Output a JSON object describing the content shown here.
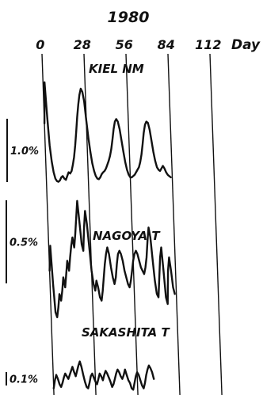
{
  "chart_data": {
    "type": "line",
    "year_label": "1980",
    "x_unit": "Day",
    "x_ticks": [
      0,
      28,
      56,
      84,
      112
    ],
    "xlim": [
      0,
      112
    ],
    "panels": [
      {
        "name": "KIEL NM",
        "scale_label": "1.0%",
        "scale_value": 1.0,
        "points": [
          [
            0,
            0.95
          ],
          [
            1,
            1.6
          ],
          [
            2,
            1.05
          ],
          [
            3,
            0.6
          ],
          [
            4,
            0.35
          ],
          [
            5,
            0.18
          ],
          [
            6,
            0.08
          ],
          [
            7,
            0.04
          ],
          [
            8,
            0.03
          ],
          [
            9,
            0.05
          ],
          [
            10,
            0.1
          ],
          [
            11,
            0.12
          ],
          [
            12,
            0.08
          ],
          [
            13,
            0.06
          ],
          [
            14,
            0.12
          ],
          [
            15,
            0.18
          ],
          [
            16,
            0.16
          ],
          [
            17,
            0.2
          ],
          [
            18,
            0.3
          ],
          [
            19,
            0.42
          ],
          [
            20,
            0.6
          ],
          [
            21,
            0.82
          ],
          [
            22,
            1.05
          ],
          [
            23,
            1.25
          ],
          [
            24,
            1.4
          ],
          [
            25,
            1.5
          ],
          [
            26,
            1.45
          ],
          [
            27,
            1.3
          ],
          [
            28,
            1.0
          ],
          [
            29,
            0.72
          ],
          [
            30,
            0.5
          ],
          [
            31,
            0.32
          ],
          [
            32,
            0.2
          ],
          [
            33,
            0.12
          ],
          [
            34,
            0.08
          ],
          [
            35,
            0.07
          ],
          [
            36,
            0.1
          ],
          [
            37,
            0.15
          ],
          [
            38,
            0.18
          ],
          [
            39,
            0.2
          ],
          [
            40,
            0.24
          ],
          [
            41,
            0.3
          ],
          [
            42,
            0.36
          ],
          [
            43,
            0.44
          ],
          [
            44,
            0.55
          ],
          [
            45,
            0.7
          ],
          [
            46,
            0.86
          ],
          [
            47,
            0.98
          ],
          [
            48,
            1.02
          ],
          [
            49,
            0.98
          ],
          [
            50,
            0.86
          ],
          [
            51,
            0.68
          ],
          [
            52,
            0.5
          ],
          [
            53,
            0.34
          ],
          [
            54,
            0.22
          ],
          [
            55,
            0.14
          ],
          [
            56,
            0.1
          ],
          [
            57,
            0.1
          ],
          [
            58,
            0.12
          ],
          [
            59,
            0.14
          ],
          [
            60,
            0.18
          ],
          [
            61,
            0.22
          ],
          [
            62,
            0.26
          ],
          [
            63,
            0.34
          ],
          [
            64,
            0.46
          ],
          [
            65,
            0.62
          ],
          [
            66,
            0.8
          ],
          [
            67,
            0.93
          ],
          [
            68,
            0.98
          ],
          [
            69,
            0.96
          ],
          [
            70,
            0.85
          ],
          [
            71,
            0.68
          ],
          [
            72,
            0.5
          ],
          [
            73,
            0.36
          ],
          [
            74,
            0.26
          ],
          [
            75,
            0.22
          ],
          [
            76,
            0.2
          ],
          [
            77,
            0.24
          ],
          [
            78,
            0.28
          ],
          [
            79,
            0.24
          ],
          [
            80,
            0.18
          ],
          [
            81,
            0.14
          ],
          [
            82,
            0.12
          ],
          [
            83,
            0.1
          ]
        ]
      },
      {
        "name": "NAGOYA T",
        "scale_label": "0.5%",
        "scale_value": 0.5,
        "points": [
          [
            0,
            0.3
          ],
          [
            1,
            0.45
          ],
          [
            2,
            0.22
          ],
          [
            3,
            0.05
          ],
          [
            4,
            0.02
          ],
          [
            5,
            0.08
          ],
          [
            6,
            0.16
          ],
          [
            7,
            0.12
          ],
          [
            8,
            0.18
          ],
          [
            9,
            0.26
          ],
          [
            10,
            0.2
          ],
          [
            11,
            0.28
          ],
          [
            12,
            0.36
          ],
          [
            13,
            0.3
          ],
          [
            14,
            0.38
          ],
          [
            15,
            0.45
          ],
          [
            16,
            0.5
          ],
          [
            17,
            0.44
          ],
          [
            18,
            0.52
          ],
          [
            19,
            0.62
          ],
          [
            20,
            0.72
          ],
          [
            21,
            0.6
          ],
          [
            22,
            0.46
          ],
          [
            23,
            0.42
          ],
          [
            24,
            0.56
          ],
          [
            25,
            0.66
          ],
          [
            26,
            0.58
          ],
          [
            27,
            0.44
          ],
          [
            28,
            0.3
          ],
          [
            29,
            0.22
          ],
          [
            30,
            0.18
          ],
          [
            31,
            0.24
          ],
          [
            32,
            0.2
          ],
          [
            33,
            0.14
          ],
          [
            34,
            0.12
          ],
          [
            35,
            0.18
          ],
          [
            36,
            0.26
          ],
          [
            37,
            0.34
          ],
          [
            38,
            0.4
          ],
          [
            39,
            0.44
          ],
          [
            40,
            0.4
          ],
          [
            41,
            0.32
          ],
          [
            42,
            0.26
          ],
          [
            43,
            0.22
          ],
          [
            44,
            0.26
          ],
          [
            45,
            0.34
          ],
          [
            46,
            0.4
          ],
          [
            47,
            0.42
          ],
          [
            48,
            0.4
          ],
          [
            49,
            0.36
          ],
          [
            50,
            0.3
          ],
          [
            51,
            0.26
          ],
          [
            52,
            0.22
          ],
          [
            53,
            0.2
          ],
          [
            54,
            0.24
          ],
          [
            55,
            0.3
          ],
          [
            56,
            0.36
          ],
          [
            57,
            0.4
          ],
          [
            58,
            0.42
          ],
          [
            59,
            0.4
          ],
          [
            60,
            0.36
          ],
          [
            61,
            0.32
          ],
          [
            62,
            0.3
          ],
          [
            63,
            0.28
          ],
          [
            64,
            0.32
          ],
          [
            65,
            0.38
          ],
          [
            66,
            0.48
          ],
          [
            67,
            0.56
          ],
          [
            68,
            0.5
          ],
          [
            69,
            0.36
          ],
          [
            70,
            0.24
          ],
          [
            71,
            0.16
          ],
          [
            72,
            0.14
          ],
          [
            73,
            0.26
          ],
          [
            74,
            0.38
          ],
          [
            75,
            0.44
          ],
          [
            76,
            0.3
          ],
          [
            77,
            0.14
          ],
          [
            78,
            0.1
          ],
          [
            79,
            0.3
          ],
          [
            80,
            0.38
          ],
          [
            81,
            0.3
          ],
          [
            82,
            0.2
          ],
          [
            83,
            0.16
          ]
        ]
      },
      {
        "name": "SAKASHITA T",
        "scale_label": "0.1%",
        "scale_value": 0.1,
        "points": [
          [
            0,
            0.02
          ],
          [
            1,
            0.08
          ],
          [
            2,
            0.12
          ],
          [
            3,
            0.09
          ],
          [
            4,
            0.05
          ],
          [
            5,
            0.03
          ],
          [
            6,
            0.06
          ],
          [
            7,
            0.1
          ],
          [
            8,
            0.13
          ],
          [
            9,
            0.11
          ],
          [
            10,
            0.09
          ],
          [
            11,
            0.12
          ],
          [
            12,
            0.15
          ],
          [
            13,
            0.18
          ],
          [
            14,
            0.14
          ],
          [
            15,
            0.11
          ],
          [
            16,
            0.15
          ],
          [
            17,
            0.19
          ],
          [
            18,
            0.22
          ],
          [
            19,
            0.18
          ],
          [
            20,
            0.12
          ],
          [
            21,
            0.07
          ],
          [
            22,
            0.03
          ],
          [
            23,
            0.02
          ],
          [
            24,
            0.06
          ],
          [
            25,
            0.11
          ],
          [
            26,
            0.13
          ],
          [
            27,
            0.1
          ],
          [
            28,
            0.07
          ],
          [
            29,
            0.05
          ],
          [
            30,
            0.09
          ],
          [
            31,
            0.13
          ],
          [
            32,
            0.11
          ],
          [
            33,
            0.08
          ],
          [
            34,
            0.12
          ],
          [
            35,
            0.15
          ],
          [
            36,
            0.13
          ],
          [
            37,
            0.1
          ],
          [
            38,
            0.07
          ],
          [
            39,
            0.03
          ],
          [
            40,
            0.05
          ],
          [
            41,
            0.09
          ],
          [
            42,
            0.13
          ],
          [
            43,
            0.16
          ],
          [
            44,
            0.14
          ],
          [
            45,
            0.11
          ],
          [
            46,
            0.09
          ],
          [
            47,
            0.12
          ],
          [
            48,
            0.16
          ],
          [
            49,
            0.12
          ],
          [
            50,
            0.08
          ],
          [
            51,
            0.06
          ],
          [
            52,
            0.02
          ],
          [
            53,
            0.01
          ],
          [
            54,
            0.06
          ],
          [
            55,
            0.11
          ],
          [
            56,
            0.14
          ],
          [
            57,
            0.12
          ],
          [
            58,
            0.08
          ],
          [
            59,
            0.04
          ],
          [
            60,
            0.02
          ],
          [
            61,
            0.06
          ],
          [
            62,
            0.12
          ],
          [
            63,
            0.16
          ],
          [
            64,
            0.19
          ],
          [
            65,
            0.17
          ],
          [
            66,
            0.14
          ],
          [
            67,
            0.09
          ]
        ]
      }
    ],
    "grid": "vertical lines at tick days"
  }
}
